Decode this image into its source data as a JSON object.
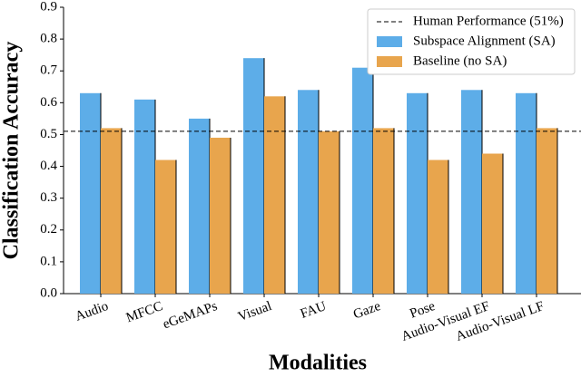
{
  "chart_data": {
    "type": "bar",
    "x_label": "Modalities",
    "y_label": "Classification Accuracy",
    "categories": [
      "Audio",
      "MFCC",
      "eGeMAPs",
      "Visual",
      "FAU",
      "Gaze",
      "Pose",
      "Audio-Visual EF",
      "Audio-Visual LF"
    ],
    "series": [
      {
        "name": "Subspace Alignment (SA)",
        "color": "#5dade8",
        "values": [
          0.63,
          0.61,
          0.55,
          0.74,
          0.64,
          0.71,
          0.63,
          0.64,
          0.63
        ]
      },
      {
        "name": "Baseline (no SA)",
        "color": "#e8a54d",
        "values": [
          0.52,
          0.42,
          0.49,
          0.62,
          0.51,
          0.52,
          0.42,
          0.44,
          0.52
        ]
      }
    ],
    "reference_lines": [
      {
        "name": "Human Performance (51%)",
        "value": 0.51
      }
    ],
    "ylim": [
      0,
      0.9
    ],
    "yticks": [
      {
        "value": 0,
        "label": "0.0"
      },
      0.1,
      0.2,
      0.3,
      0.4,
      0.5,
      0.6,
      0.7,
      0.8,
      0.9
    ],
    "legend": "upper right"
  }
}
